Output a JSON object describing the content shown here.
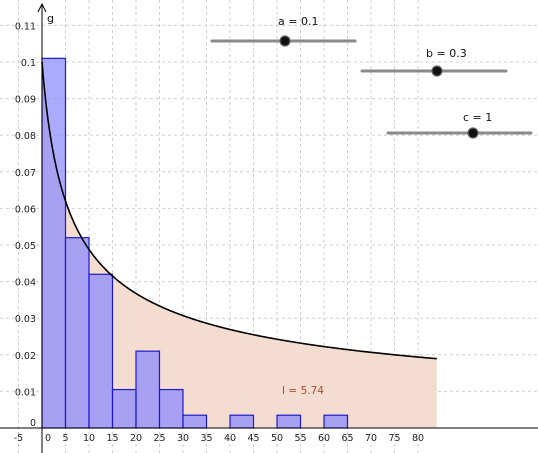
{
  "graph": {
    "function_label": "g",
    "integral_label": "I = 5.74",
    "x_ticks": [
      "-5",
      "0",
      "5",
      "10",
      "15",
      "20",
      "25",
      "30",
      "35",
      "40",
      "45",
      "50",
      "55",
      "60",
      "65",
      "70",
      "75",
      "80"
    ],
    "y_ticks": [
      "0",
      "0.01",
      "0.02",
      "0.03",
      "0.04",
      "0.05",
      "0.06",
      "0.07",
      "0.08",
      "0.09",
      "0.1",
      "0.11"
    ]
  },
  "sliders": [
    {
      "label": "a = 0.1",
      "name": "a",
      "value": 0.1
    },
    {
      "label": "b = 0.3",
      "name": "b",
      "value": 0.3
    },
    {
      "label": "c = 1",
      "name": "c",
      "value": 1
    }
  ],
  "colors": {
    "bar_fill": "#8d8dff",
    "bar_stroke": "#1a1acc",
    "area_fill": "#f5dcd0",
    "curve": "#000000",
    "grid": "#cfcfcf",
    "integral_text": "#a0522d"
  },
  "chart_data": {
    "type": "bar",
    "x_range": [
      -6.5,
      84
    ],
    "y_range": [
      -0.007,
      0.12
    ],
    "bin_width": 5,
    "bins": [
      {
        "x": 0,
        "value": 0.101
      },
      {
        "x": 5,
        "value": 0.052
      },
      {
        "x": 10,
        "value": 0.042
      },
      {
        "x": 15,
        "value": 0.0105
      },
      {
        "x": 20,
        "value": 0.021
      },
      {
        "x": 25,
        "value": 0.0105
      },
      {
        "x": 30,
        "value": 0.0035
      },
      {
        "x": 35,
        "value": 0
      },
      {
        "x": 40,
        "value": 0.0035
      },
      {
        "x": 45,
        "value": 0
      },
      {
        "x": 50,
        "value": 0.0035
      },
      {
        "x": 55,
        "value": 0
      },
      {
        "x": 60,
        "value": 0.0035
      }
    ],
    "curve": "g(x) = a / (b + c·x)^0.5 shaped decaying curve",
    "grid": true
  }
}
